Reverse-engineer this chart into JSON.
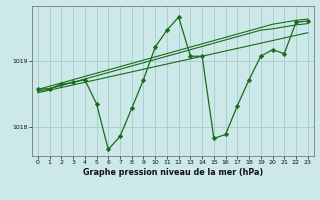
{
  "title": "Graphe pression niveau de la mer (hPa)",
  "bg_color": "#cce8e8",
  "grid_color": "#aad0d0",
  "line_color": "#1a6b1a",
  "xlim": [
    -0.5,
    23.5
  ],
  "ylim": [
    1017.55,
    1019.85
  ],
  "yticks": [
    1018,
    1019
  ],
  "xticks": [
    0,
    1,
    2,
    3,
    4,
    5,
    6,
    7,
    8,
    9,
    10,
    11,
    12,
    13,
    14,
    15,
    16,
    17,
    18,
    19,
    20,
    21,
    22,
    23
  ],
  "trend1": [
    1018.57,
    1018.62,
    1018.67,
    1018.72,
    1018.77,
    1018.82,
    1018.87,
    1018.92,
    1018.97,
    1019.02,
    1019.07,
    1019.12,
    1019.17,
    1019.22,
    1019.27,
    1019.32,
    1019.37,
    1019.42,
    1019.47,
    1019.52,
    1019.57,
    1019.6,
    1019.63,
    1019.65
  ],
  "trend2": [
    1018.54,
    1018.58,
    1018.63,
    1018.68,
    1018.73,
    1018.78,
    1018.83,
    1018.88,
    1018.93,
    1018.98,
    1019.03,
    1019.08,
    1019.13,
    1019.18,
    1019.23,
    1019.28,
    1019.33,
    1019.38,
    1019.43,
    1019.48,
    1019.5,
    1019.53,
    1019.56,
    1019.58
  ],
  "trend3": [
    1018.52,
    1018.56,
    1018.6,
    1018.64,
    1018.68,
    1018.72,
    1018.76,
    1018.8,
    1018.84,
    1018.88,
    1018.92,
    1018.96,
    1019.0,
    1019.04,
    1019.08,
    1019.12,
    1019.16,
    1019.2,
    1019.24,
    1019.28,
    1019.32,
    1019.36,
    1019.4,
    1019.44
  ],
  "main_y": [
    1018.58,
    1018.58,
    1018.65,
    1018.68,
    1018.72,
    1018.35,
    1017.65,
    1017.85,
    1018.28,
    1018.72,
    1019.22,
    1019.48,
    1019.68,
    1019.08,
    1019.08,
    1017.82,
    1017.88,
    1018.32,
    1018.72,
    1019.08,
    1019.18,
    1019.12,
    1019.6,
    1019.62
  ]
}
